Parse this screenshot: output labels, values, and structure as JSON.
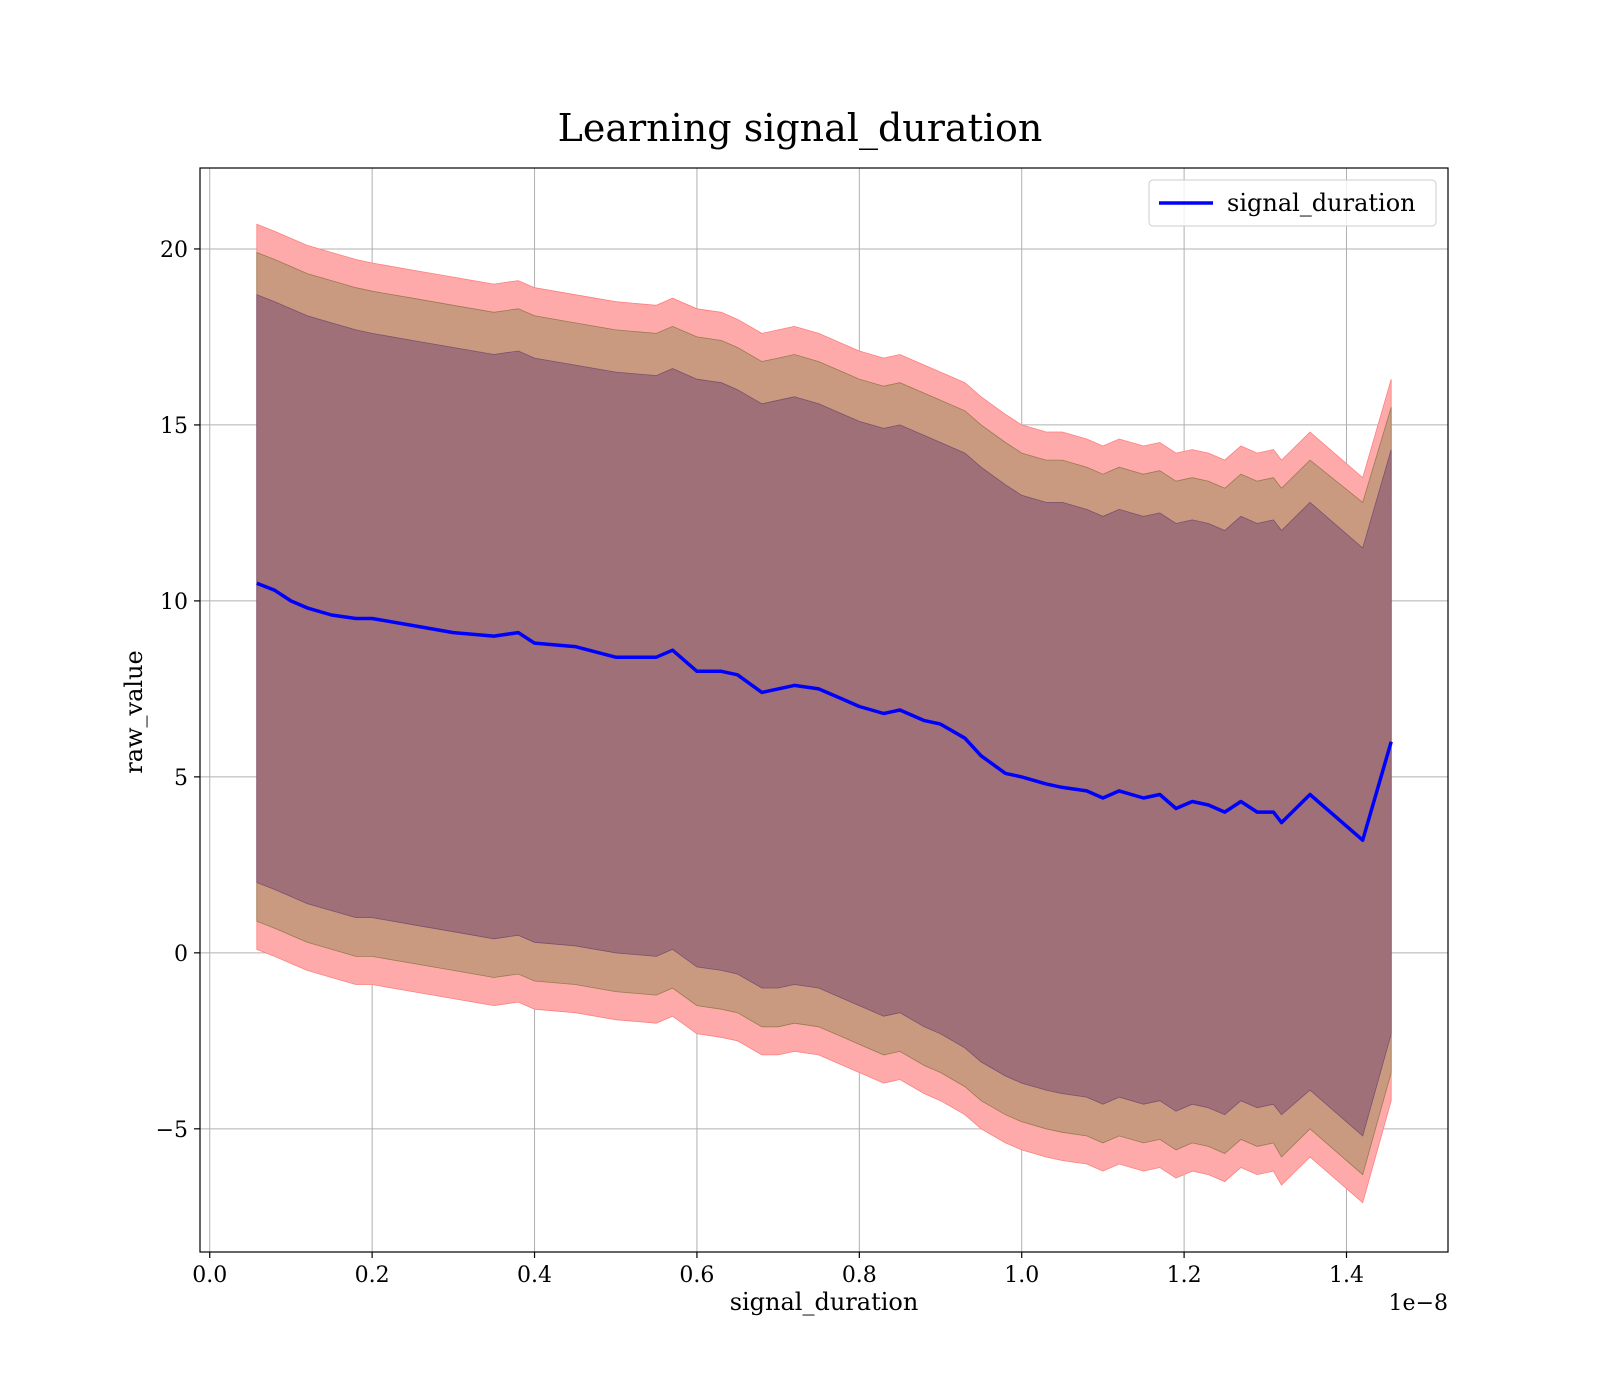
{
  "chart_data": {
    "type": "line",
    "title": "Learning signal_duration",
    "xlabel": "signal_duration",
    "ylabel": "raw_value",
    "x_offset_label": "1e−8",
    "xlim": [
      -0.012,
      1.525
    ],
    "ylim": [
      -8.5,
      22.3
    ],
    "x_ticks": [
      0.0,
      0.2,
      0.4,
      0.6,
      0.8,
      1.0,
      1.2,
      1.4
    ],
    "x_tick_labels": [
      "0.0",
      "0.2",
      "0.4",
      "0.6",
      "0.8",
      "1.0",
      "1.2",
      "1.4"
    ],
    "y_ticks": [
      -5,
      0,
      5,
      10,
      15,
      20
    ],
    "y_tick_labels": [
      "−5",
      "0",
      "5",
      "10",
      "15",
      "20"
    ],
    "grid": true,
    "legend": {
      "position": "top-right",
      "entries": [
        "signal_duration"
      ]
    },
    "colors": {
      "line": "#0000ff",
      "band_outer": "#ffaaaa",
      "band_middle": "#c99a80",
      "band_inner": "#a07078"
    },
    "series": [
      {
        "name": "signal_duration",
        "x": [
          0.058,
          0.08,
          0.1,
          0.12,
          0.15,
          0.18,
          0.2,
          0.25,
          0.3,
          0.35,
          0.38,
          0.4,
          0.45,
          0.5,
          0.55,
          0.57,
          0.6,
          0.63,
          0.65,
          0.68,
          0.7,
          0.72,
          0.75,
          0.78,
          0.8,
          0.83,
          0.85,
          0.88,
          0.9,
          0.93,
          0.95,
          0.98,
          1.0,
          1.03,
          1.05,
          1.08,
          1.1,
          1.12,
          1.15,
          1.17,
          1.19,
          1.21,
          1.23,
          1.25,
          1.27,
          1.29,
          1.31,
          1.32,
          1.355,
          1.42,
          1.455
        ],
        "y": [
          10.5,
          10.3,
          10.0,
          9.8,
          9.6,
          9.5,
          9.5,
          9.3,
          9.1,
          9.0,
          9.1,
          8.8,
          8.7,
          8.4,
          8.4,
          8.6,
          8.0,
          8.0,
          7.9,
          7.4,
          7.5,
          7.6,
          7.5,
          7.2,
          7.0,
          6.8,
          6.9,
          6.6,
          6.5,
          6.1,
          5.6,
          5.1,
          5.0,
          4.8,
          4.7,
          4.6,
          4.4,
          4.6,
          4.4,
          4.5,
          4.1,
          4.3,
          4.2,
          4.0,
          4.3,
          4.0,
          4.0,
          3.7,
          4.5,
          3.2,
          6.0
        ],
        "band_outer_upper": [
          20.7,
          20.5,
          20.3,
          20.1,
          19.9,
          19.7,
          19.6,
          19.4,
          19.2,
          19.0,
          19.1,
          18.9,
          18.7,
          18.5,
          18.4,
          18.6,
          18.3,
          18.2,
          18.0,
          17.6,
          17.7,
          17.8,
          17.6,
          17.3,
          17.1,
          16.9,
          17.0,
          16.7,
          16.5,
          16.2,
          15.8,
          15.3,
          15.0,
          14.8,
          14.8,
          14.6,
          14.4,
          14.6,
          14.4,
          14.5,
          14.2,
          14.3,
          14.2,
          14.0,
          14.4,
          14.2,
          14.3,
          14.0,
          14.8,
          13.5,
          16.3
        ],
        "band_middle_upper": [
          19.9,
          19.7,
          19.5,
          19.3,
          19.1,
          18.9,
          18.8,
          18.6,
          18.4,
          18.2,
          18.3,
          18.1,
          17.9,
          17.7,
          17.6,
          17.8,
          17.5,
          17.4,
          17.2,
          16.8,
          16.9,
          17.0,
          16.8,
          16.5,
          16.3,
          16.1,
          16.2,
          15.9,
          15.7,
          15.4,
          15.0,
          14.5,
          14.2,
          14.0,
          14.0,
          13.8,
          13.6,
          13.8,
          13.6,
          13.7,
          13.4,
          13.5,
          13.4,
          13.2,
          13.6,
          13.4,
          13.5,
          13.2,
          14.0,
          12.8,
          15.5
        ],
        "band_inner_upper": [
          18.7,
          18.5,
          18.3,
          18.1,
          17.9,
          17.7,
          17.6,
          17.4,
          17.2,
          17.0,
          17.1,
          16.9,
          16.7,
          16.5,
          16.4,
          16.6,
          16.3,
          16.2,
          16.0,
          15.6,
          15.7,
          15.8,
          15.6,
          15.3,
          15.1,
          14.9,
          15.0,
          14.7,
          14.5,
          14.2,
          13.8,
          13.3,
          13.0,
          12.8,
          12.8,
          12.6,
          12.4,
          12.6,
          12.4,
          12.5,
          12.2,
          12.3,
          12.2,
          12.0,
          12.4,
          12.2,
          12.3,
          12.0,
          12.8,
          11.5,
          14.3
        ],
        "band_inner_lower": [
          2.0,
          1.8,
          1.6,
          1.4,
          1.2,
          1.0,
          1.0,
          0.8,
          0.6,
          0.4,
          0.5,
          0.3,
          0.2,
          0.0,
          -0.1,
          0.1,
          -0.4,
          -0.5,
          -0.6,
          -1.0,
          -1.0,
          -0.9,
          -1.0,
          -1.3,
          -1.5,
          -1.8,
          -1.7,
          -2.1,
          -2.3,
          -2.7,
          -3.1,
          -3.5,
          -3.7,
          -3.9,
          -4.0,
          -4.1,
          -4.3,
          -4.1,
          -4.3,
          -4.2,
          -4.5,
          -4.3,
          -4.4,
          -4.6,
          -4.2,
          -4.4,
          -4.3,
          -4.6,
          -3.9,
          -5.2,
          -2.3
        ],
        "band_middle_lower": [
          0.9,
          0.7,
          0.5,
          0.3,
          0.1,
          -0.1,
          -0.1,
          -0.3,
          -0.5,
          -0.7,
          -0.6,
          -0.8,
          -0.9,
          -1.1,
          -1.2,
          -1.0,
          -1.5,
          -1.6,
          -1.7,
          -2.1,
          -2.1,
          -2.0,
          -2.1,
          -2.4,
          -2.6,
          -2.9,
          -2.8,
          -3.2,
          -3.4,
          -3.8,
          -4.2,
          -4.6,
          -4.8,
          -5.0,
          -5.1,
          -5.2,
          -5.4,
          -5.2,
          -5.4,
          -5.3,
          -5.6,
          -5.4,
          -5.5,
          -5.7,
          -5.3,
          -5.5,
          -5.4,
          -5.8,
          -5.0,
          -6.3,
          -3.4
        ],
        "band_outer_lower": [
          0.1,
          -0.1,
          -0.3,
          -0.5,
          -0.7,
          -0.9,
          -0.9,
          -1.1,
          -1.3,
          -1.5,
          -1.4,
          -1.6,
          -1.7,
          -1.9,
          -2.0,
          -1.8,
          -2.3,
          -2.4,
          -2.5,
          -2.9,
          -2.9,
          -2.8,
          -2.9,
          -3.2,
          -3.4,
          -3.7,
          -3.6,
          -4.0,
          -4.2,
          -4.6,
          -5.0,
          -5.4,
          -5.6,
          -5.8,
          -5.9,
          -6.0,
          -6.2,
          -6.0,
          -6.2,
          -6.1,
          -6.4,
          -6.2,
          -6.3,
          -6.5,
          -6.1,
          -6.3,
          -6.2,
          -6.6,
          -5.8,
          -7.1,
          -4.2
        ]
      }
    ]
  }
}
